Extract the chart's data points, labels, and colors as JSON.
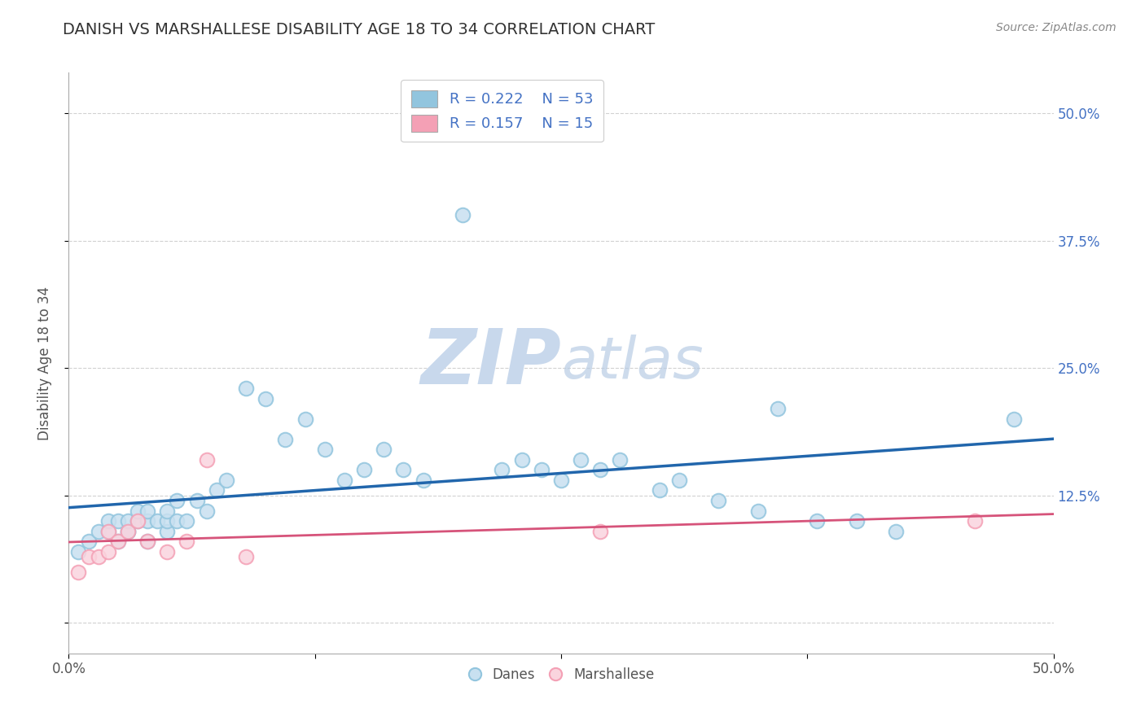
{
  "title": "DANISH VS MARSHALLESE DISABILITY AGE 18 TO 34 CORRELATION CHART",
  "source": "Source: ZipAtlas.com",
  "ylabel_label": "Disability Age 18 to 34",
  "xlim": [
    0.0,
    0.5
  ],
  "ylim": [
    -0.03,
    0.54
  ],
  "danes_R": 0.222,
  "danes_N": 53,
  "marshallese_R": 0.157,
  "marshallese_N": 15,
  "danes_color": "#92c5de",
  "danes_fill_color": "#c8e0f0",
  "danes_line_color": "#2166ac",
  "marshallese_color": "#f4a0b5",
  "marshallese_fill_color": "#fad4de",
  "marshallese_line_color": "#d6537a",
  "background_color": "#ffffff",
  "grid_color": "#cccccc",
  "legend_text_color": "#4472c4",
  "watermark_color": "#c8d8ec",
  "danes_x": [
    0.005,
    0.01,
    0.015,
    0.02,
    0.02,
    0.025,
    0.025,
    0.03,
    0.03,
    0.03,
    0.035,
    0.035,
    0.04,
    0.04,
    0.04,
    0.045,
    0.05,
    0.05,
    0.05,
    0.055,
    0.055,
    0.06,
    0.065,
    0.07,
    0.075,
    0.08,
    0.09,
    0.1,
    0.11,
    0.12,
    0.13,
    0.14,
    0.15,
    0.16,
    0.17,
    0.18,
    0.2,
    0.22,
    0.23,
    0.24,
    0.25,
    0.26,
    0.27,
    0.28,
    0.3,
    0.31,
    0.33,
    0.35,
    0.36,
    0.38,
    0.4,
    0.42,
    0.48
  ],
  "danes_y": [
    0.07,
    0.08,
    0.09,
    0.09,
    0.1,
    0.08,
    0.1,
    0.09,
    0.09,
    0.1,
    0.1,
    0.11,
    0.08,
    0.1,
    0.11,
    0.1,
    0.09,
    0.1,
    0.11,
    0.1,
    0.12,
    0.1,
    0.12,
    0.11,
    0.13,
    0.14,
    0.23,
    0.22,
    0.18,
    0.2,
    0.17,
    0.14,
    0.15,
    0.17,
    0.15,
    0.14,
    0.4,
    0.15,
    0.16,
    0.15,
    0.14,
    0.16,
    0.15,
    0.16,
    0.13,
    0.14,
    0.12,
    0.11,
    0.21,
    0.1,
    0.1,
    0.09,
    0.2
  ],
  "marshallese_x": [
    0.005,
    0.01,
    0.015,
    0.02,
    0.02,
    0.025,
    0.03,
    0.035,
    0.04,
    0.05,
    0.06,
    0.07,
    0.09,
    0.27,
    0.46
  ],
  "marshallese_y": [
    0.05,
    0.065,
    0.065,
    0.07,
    0.09,
    0.08,
    0.09,
    0.1,
    0.08,
    0.07,
    0.08,
    0.16,
    0.065,
    0.09,
    0.1
  ]
}
